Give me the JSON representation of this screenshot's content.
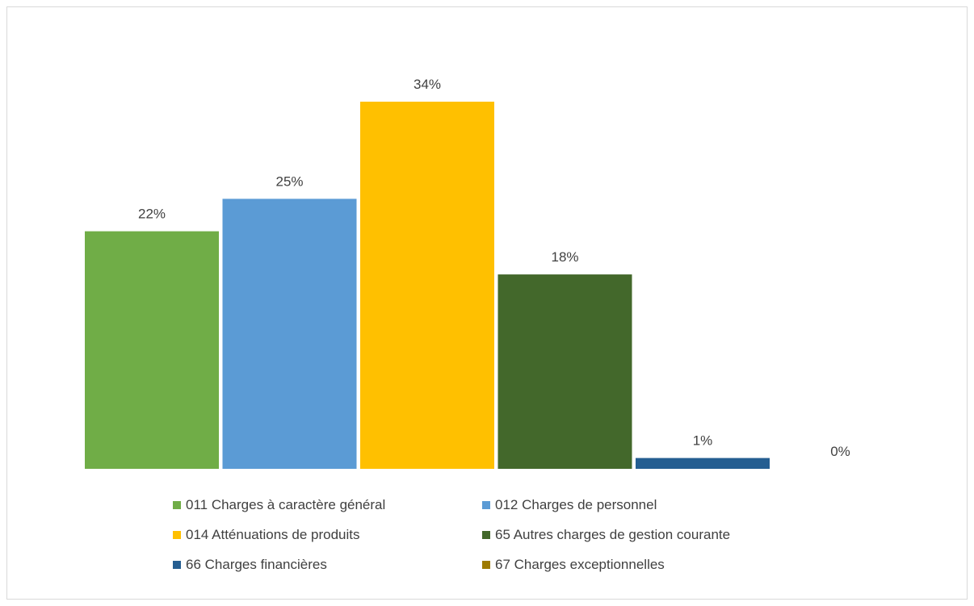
{
  "chart_data": {
    "type": "bar",
    "categories": [
      "011 Charges à caractère général",
      "012 Charges de personnel",
      "014 Atténuations de produits",
      "65 Autres charges de gestion courante",
      "66 Charges financières",
      "67 Charges exceptionnelles"
    ],
    "values": [
      22,
      25,
      34,
      18,
      1,
      0
    ],
    "data_labels": [
      "22%",
      "25%",
      "34%",
      "18%",
      "1%",
      "0%"
    ],
    "colors": [
      "#70ad47",
      "#5b9bd5",
      "#ffc000",
      "#43682b",
      "#255e91",
      "#9e7b00"
    ],
    "title": "",
    "xlabel": "",
    "ylabel": "",
    "ylim": [
      0,
      34
    ],
    "grid": false,
    "legend_position": "bottom",
    "series_kind": "one-series-per-category"
  }
}
